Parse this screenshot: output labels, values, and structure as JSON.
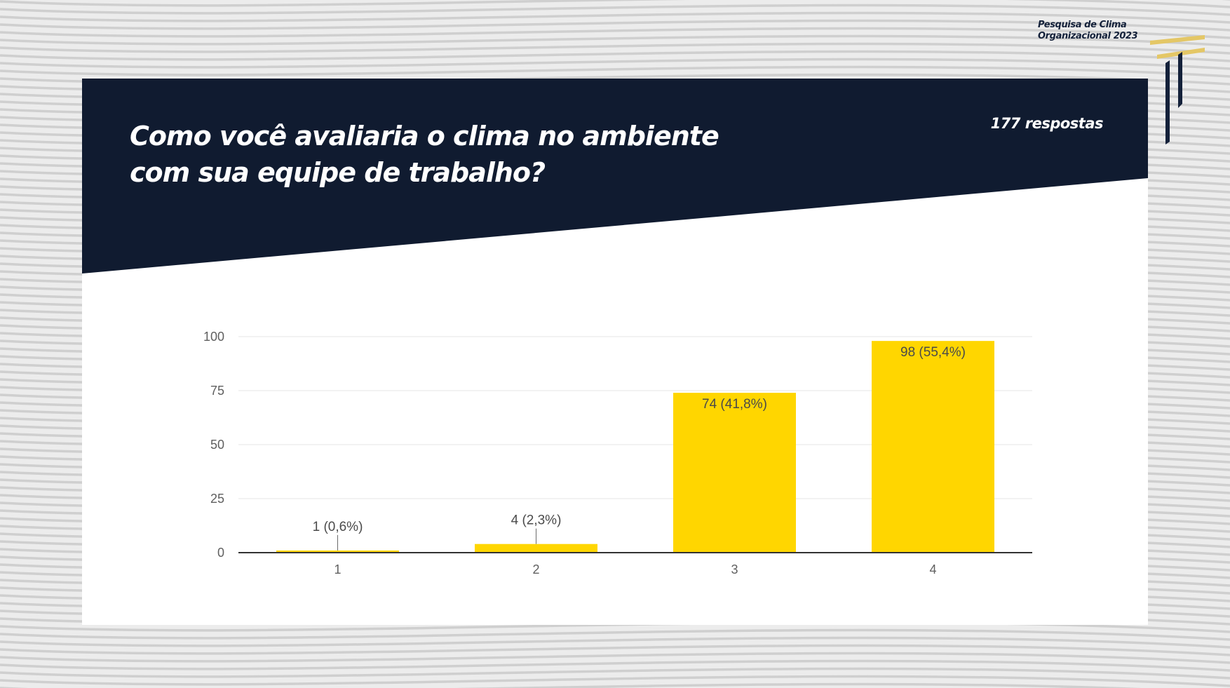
{
  "header": {
    "brand_line1": "Pesquisa de Clima",
    "brand_line2": "Organizacional 2023"
  },
  "question": {
    "title": "Como você avaliaria o clima no ambiente com sua equipe de trabalho?",
    "responses": "177 respostas"
  },
  "colors": {
    "banner": "#101b30",
    "bar": "#ffd600",
    "brand_gold": "#e4c766"
  },
  "chart_data": {
    "type": "bar",
    "categories": [
      "1",
      "2",
      "3",
      "4"
    ],
    "values": [
      1,
      4,
      74,
      98
    ],
    "data_labels": [
      "1 (0,6%)",
      "4 (2,3%)",
      "74 (41,8%)",
      "98 (55,4%)"
    ],
    "yticks": [
      "0",
      "25",
      "50",
      "75",
      "100"
    ],
    "ylim": [
      0,
      100
    ],
    "grid": true,
    "legend": "none"
  }
}
